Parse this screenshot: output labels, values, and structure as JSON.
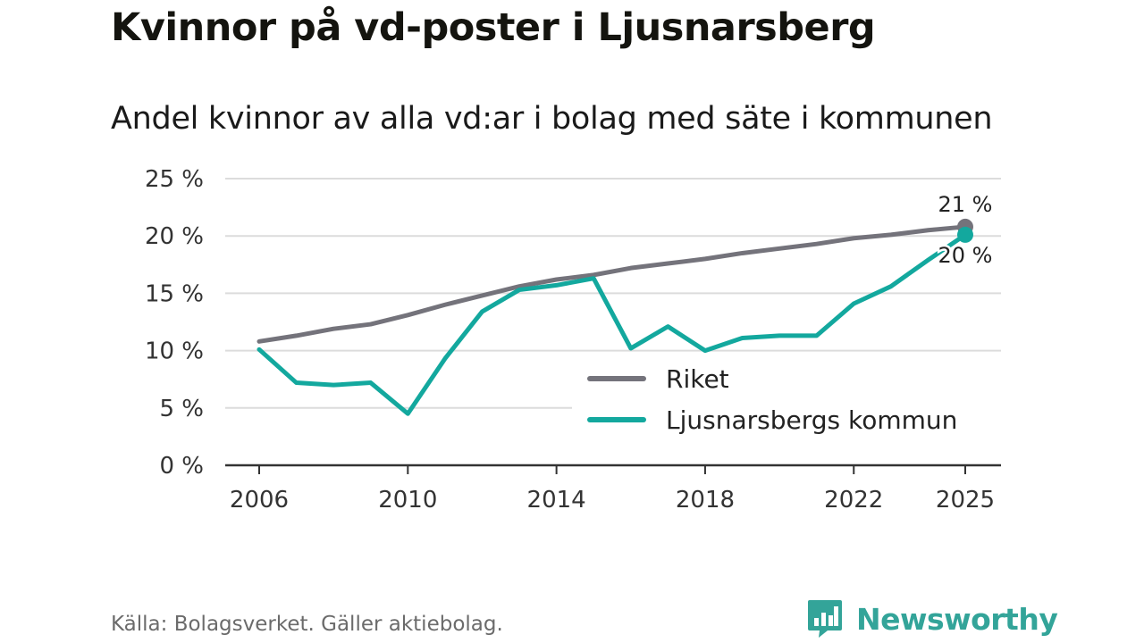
{
  "header": {
    "title": "Kvinnor på vd-poster i Ljusnarsberg",
    "subtitle": "Andel kvinnor av alla vd:ar i bolag med säte i kommunen"
  },
  "footer": {
    "source": "Källa: Bolagsverket. Gäller aktiebolag.",
    "brand": "Newsworthy"
  },
  "colors": {
    "riket": "#74737b",
    "kommun": "#13a89e",
    "grid": "#dcdcdc",
    "axis": "#333333",
    "brand": "#33a499"
  },
  "chart_data": {
    "type": "line",
    "title": "Kvinnor på vd-poster i Ljusnarsberg",
    "subtitle": "Andel kvinnor av alla vd:ar i bolag med säte i kommunen",
    "xlabel": "",
    "ylabel": "",
    "ylim": [
      0,
      25
    ],
    "xlim": [
      2006,
      2025
    ],
    "yticks": [
      {
        "value": 0,
        "label": "0 %"
      },
      {
        "value": 5,
        "label": "5 %"
      },
      {
        "value": 10,
        "label": "10 %"
      },
      {
        "value": 15,
        "label": "15 %"
      },
      {
        "value": 20,
        "label": "20 %"
      },
      {
        "value": 25,
        "label": "25 %"
      }
    ],
    "xticks": [
      {
        "value": 2006,
        "label": "2006"
      },
      {
        "value": 2010,
        "label": "2010"
      },
      {
        "value": 2014,
        "label": "2014"
      },
      {
        "value": 2018,
        "label": "2018"
      },
      {
        "value": 2022,
        "label": "2022"
      },
      {
        "value": 2025,
        "label": "2025"
      }
    ],
    "grid": true,
    "legend_position": "bottom-right",
    "x": [
      2006,
      2007,
      2008,
      2009,
      2010,
      2011,
      2012,
      2013,
      2014,
      2015,
      2016,
      2017,
      2018,
      2019,
      2020,
      2021,
      2022,
      2023,
      2024,
      2025
    ],
    "series": [
      {
        "key": "riket",
        "name": "Riket",
        "values": [
          10.8,
          11.3,
          11.9,
          12.3,
          13.1,
          14.0,
          14.8,
          15.6,
          16.2,
          16.6,
          17.2,
          17.6,
          18.0,
          18.5,
          18.9,
          19.3,
          19.8,
          20.1,
          20.5,
          20.8
        ],
        "end_label": "21 %"
      },
      {
        "key": "kommun",
        "name": "Ljusnarsbergs kommun",
        "values": [
          10.1,
          7.2,
          7.0,
          7.2,
          4.5,
          9.3,
          13.4,
          15.3,
          15.7,
          16.3,
          10.2,
          12.1,
          10.0,
          11.1,
          11.3,
          11.3,
          14.1,
          15.6,
          17.9,
          20.1
        ],
        "end_label": "20 %"
      }
    ]
  }
}
